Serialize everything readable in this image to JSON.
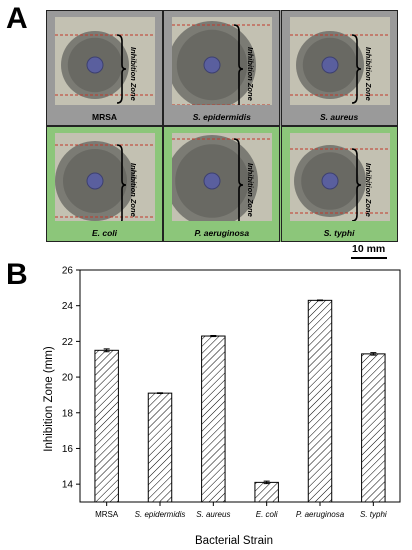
{
  "figure": {
    "panel_a_label": "A",
    "panel_b_label": "B",
    "scale_bar_label": "10 mm",
    "zone_label": "Inhibition Zone",
    "strains_row1": [
      "MRSA",
      "S. epidermidis",
      "S. aureus"
    ],
    "strains_row2": [
      "E. coli",
      "P. aeruginosa",
      "S. typhi"
    ],
    "colors": {
      "row1_background": "#9a9a9a",
      "row2_background": "#8cc67a",
      "zone_marker": "#c0392b",
      "disk": "#5a5f9e"
    }
  },
  "chart_data": {
    "type": "bar",
    "categories": [
      "MRSA",
      "S. epidermidis",
      "S. aureus",
      "E. coli",
      "P. aeruginosa",
      "S. typhi"
    ],
    "values": [
      21.5,
      19.1,
      22.3,
      14.1,
      24.3,
      21.3
    ],
    "errors": [
      0.08,
      0.02,
      0.03,
      0.07,
      0.02,
      0.07
    ],
    "xlabel": "Bacterial Strain",
    "ylabel": "Inhibition Zone (mm)",
    "ylim": [
      13,
      26
    ],
    "yticks": [
      14,
      16,
      18,
      20,
      22,
      24,
      26
    ],
    "fill": "diagonal hatch",
    "grid": false
  }
}
